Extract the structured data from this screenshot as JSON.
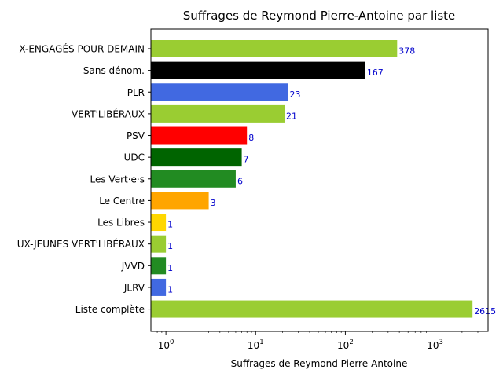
{
  "chart_data": {
    "type": "bar",
    "orientation": "horizontal",
    "title": "Suffrages de Reymond Pierre-Antoine par liste",
    "xlabel": "Suffrages de Reymond Pierre-Antoine",
    "ylabel": "",
    "xscale": "log",
    "xlim": [
      0.68,
      3900
    ],
    "grid": false,
    "legend": "none",
    "x_ticks": [
      {
        "value": 1,
        "base": "10",
        "exp": "0"
      },
      {
        "value": 10,
        "base": "10",
        "exp": "1"
      },
      {
        "value": 100,
        "base": "10",
        "exp": "2"
      },
      {
        "value": 1000,
        "base": "10",
        "exp": "3"
      }
    ],
    "categories": [
      "X-ENGAGÉS POUR DEMAIN",
      "Sans dénom.",
      "PLR",
      "VERT'LIBÉRAUX",
      "PSV",
      "UDC",
      "Les Vert·e·s",
      "Le Centre",
      "Les Libres",
      "UX-JEUNES VERT'LIBÉRAUX",
      "JVVD",
      "JLRV",
      "Liste complète"
    ],
    "values": [
      378,
      167,
      23,
      21,
      8,
      7,
      6,
      3,
      1,
      1,
      1,
      1,
      2615
    ],
    "value_labels": [
      "378",
      "167",
      "23",
      "21",
      "8",
      "7",
      "6",
      "3",
      "1",
      "1",
      "1",
      "1",
      "2615"
    ],
    "colors": [
      "#9acd32",
      "#000000",
      "#4169e1",
      "#9acd32",
      "#ff0000",
      "#006400",
      "#228b22",
      "#ffa500",
      "#ffd700",
      "#9acd32",
      "#228b22",
      "#4169e1",
      "#9acd32"
    ],
    "value_label_color": "#0000cc"
  }
}
